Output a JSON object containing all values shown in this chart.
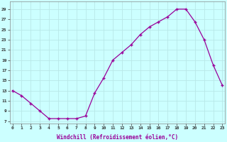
{
  "x_values": [
    0,
    1,
    2,
    3,
    4,
    5,
    6,
    7,
    8,
    9,
    10,
    11,
    12,
    13,
    14,
    15,
    16,
    17,
    18,
    19,
    20,
    21,
    22,
    23
  ],
  "y_values": [
    13,
    12,
    10.5,
    9,
    7.5,
    7.5,
    7.5,
    7.5,
    8,
    12.5,
    15.5,
    19,
    20.5,
    22,
    24,
    25.5,
    26.5,
    27.5,
    29,
    29,
    26.5,
    23,
    18,
    14
  ],
  "xlabel": "Windchill (Refroidissement éolien,°C)",
  "line_color": "#990099",
  "marker": "+",
  "bg_color": "#ccffff",
  "grid_color": "#b8e8e8",
  "yticks": [
    7,
    9,
    11,
    13,
    15,
    17,
    19,
    21,
    23,
    25,
    27,
    29
  ],
  "xticks": [
    0,
    1,
    2,
    3,
    4,
    5,
    6,
    7,
    8,
    9,
    10,
    11,
    12,
    13,
    14,
    15,
    16,
    17,
    18,
    19,
    20,
    21,
    22,
    23
  ],
  "xlim_min": -0.3,
  "xlim_max": 23.3,
  "ylim_min": 6.5,
  "ylim_max": 30.5
}
